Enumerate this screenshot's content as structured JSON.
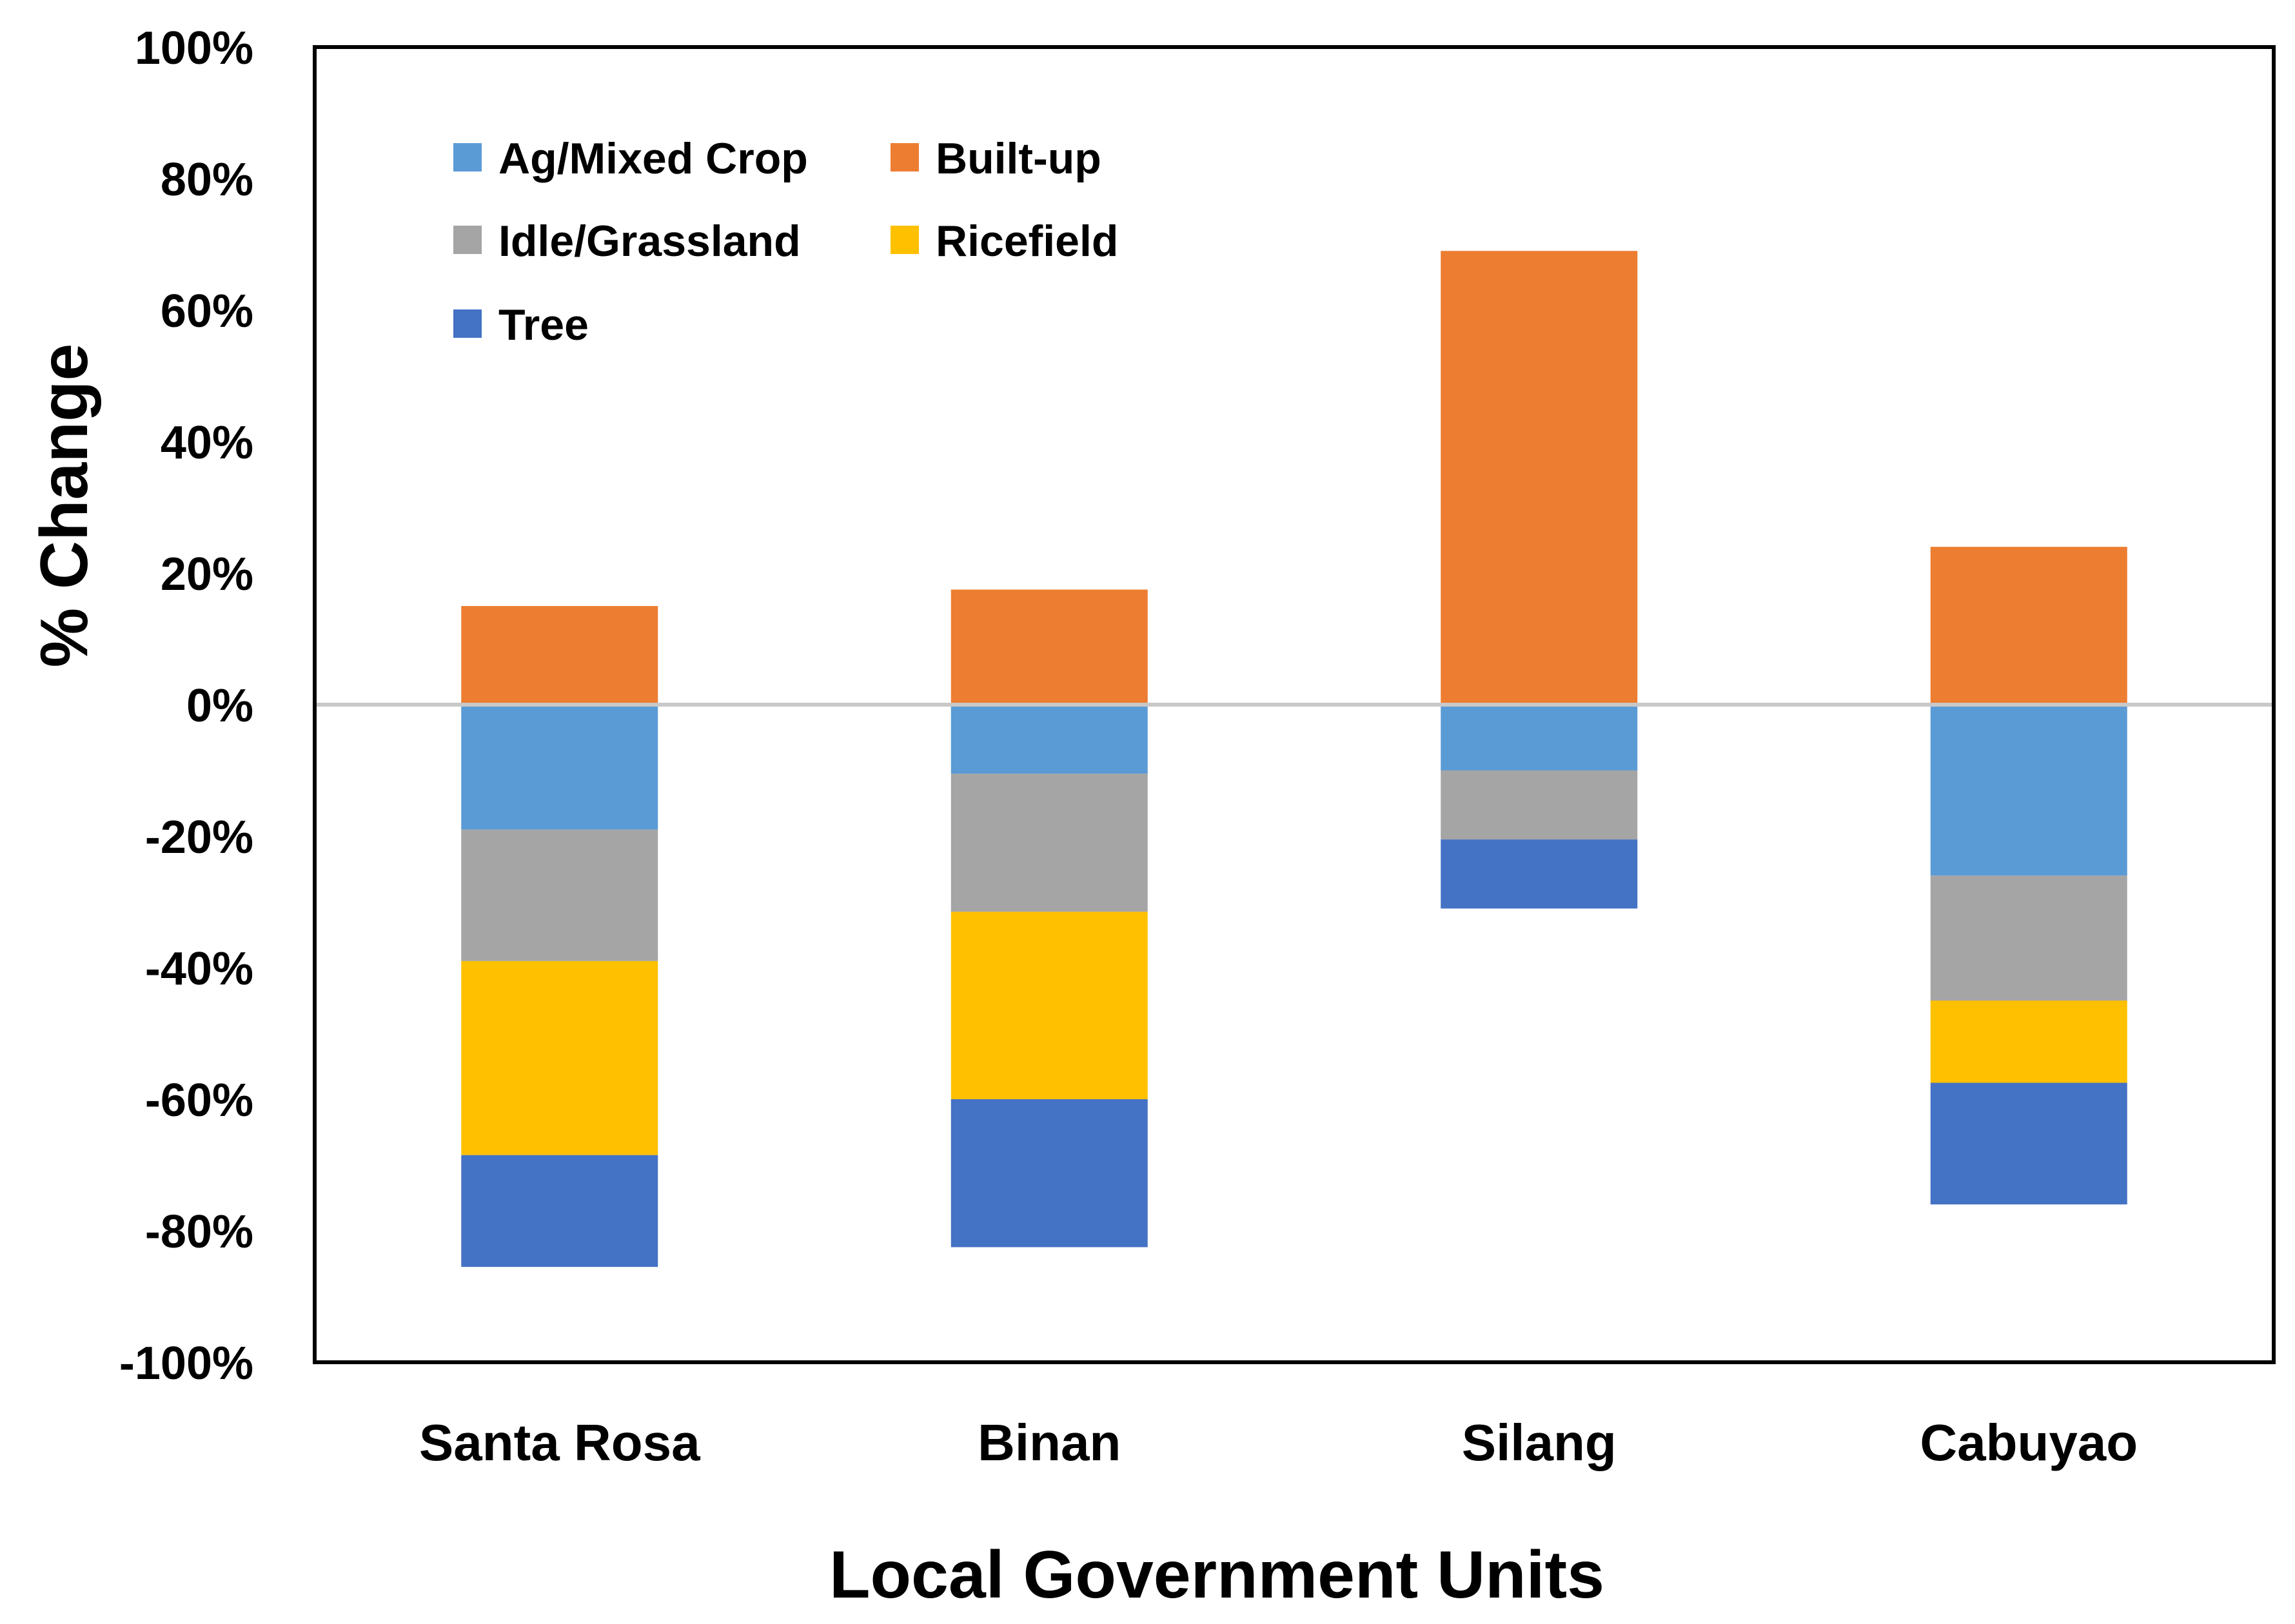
{
  "chart_data": {
    "type": "bar",
    "stacked": true,
    "title": "",
    "xlabel": "Local Government Units",
    "ylabel": "% Change",
    "ylim": [
      -100,
      100
    ],
    "yticks": [
      100,
      80,
      60,
      40,
      20,
      0,
      -20,
      -40,
      -60,
      -80,
      -100
    ],
    "ytick_labels": [
      "100%",
      "80%",
      "60%",
      "40%",
      "20%",
      "0%",
      "-20%",
      "-40%",
      "-60%",
      "-80%",
      "-100%"
    ],
    "categories": [
      "Santa Rosa",
      "Binan",
      "Silang",
      "Cabuyao"
    ],
    "legend_position": "top-left",
    "series": [
      {
        "name": "Ag/Mixed Crop",
        "color": "#5B9BD5",
        "values": [
          -19,
          -10.5,
          -10,
          -26
        ]
      },
      {
        "name": "Built-up",
        "color": "#ED7D31",
        "values": [
          15,
          17.5,
          69,
          24
        ]
      },
      {
        "name": "Idle/Grassland",
        "color": "#A5A5A5",
        "values": [
          -20,
          -21,
          -10.5,
          -19
        ]
      },
      {
        "name": "Ricefield",
        "color": "#FFC000",
        "values": [
          -29.5,
          -28.5,
          0,
          -12.5
        ]
      },
      {
        "name": "Tree",
        "color": "#4472C4",
        "values": [
          -17,
          -22.5,
          -10.5,
          -18.5
        ]
      }
    ]
  }
}
